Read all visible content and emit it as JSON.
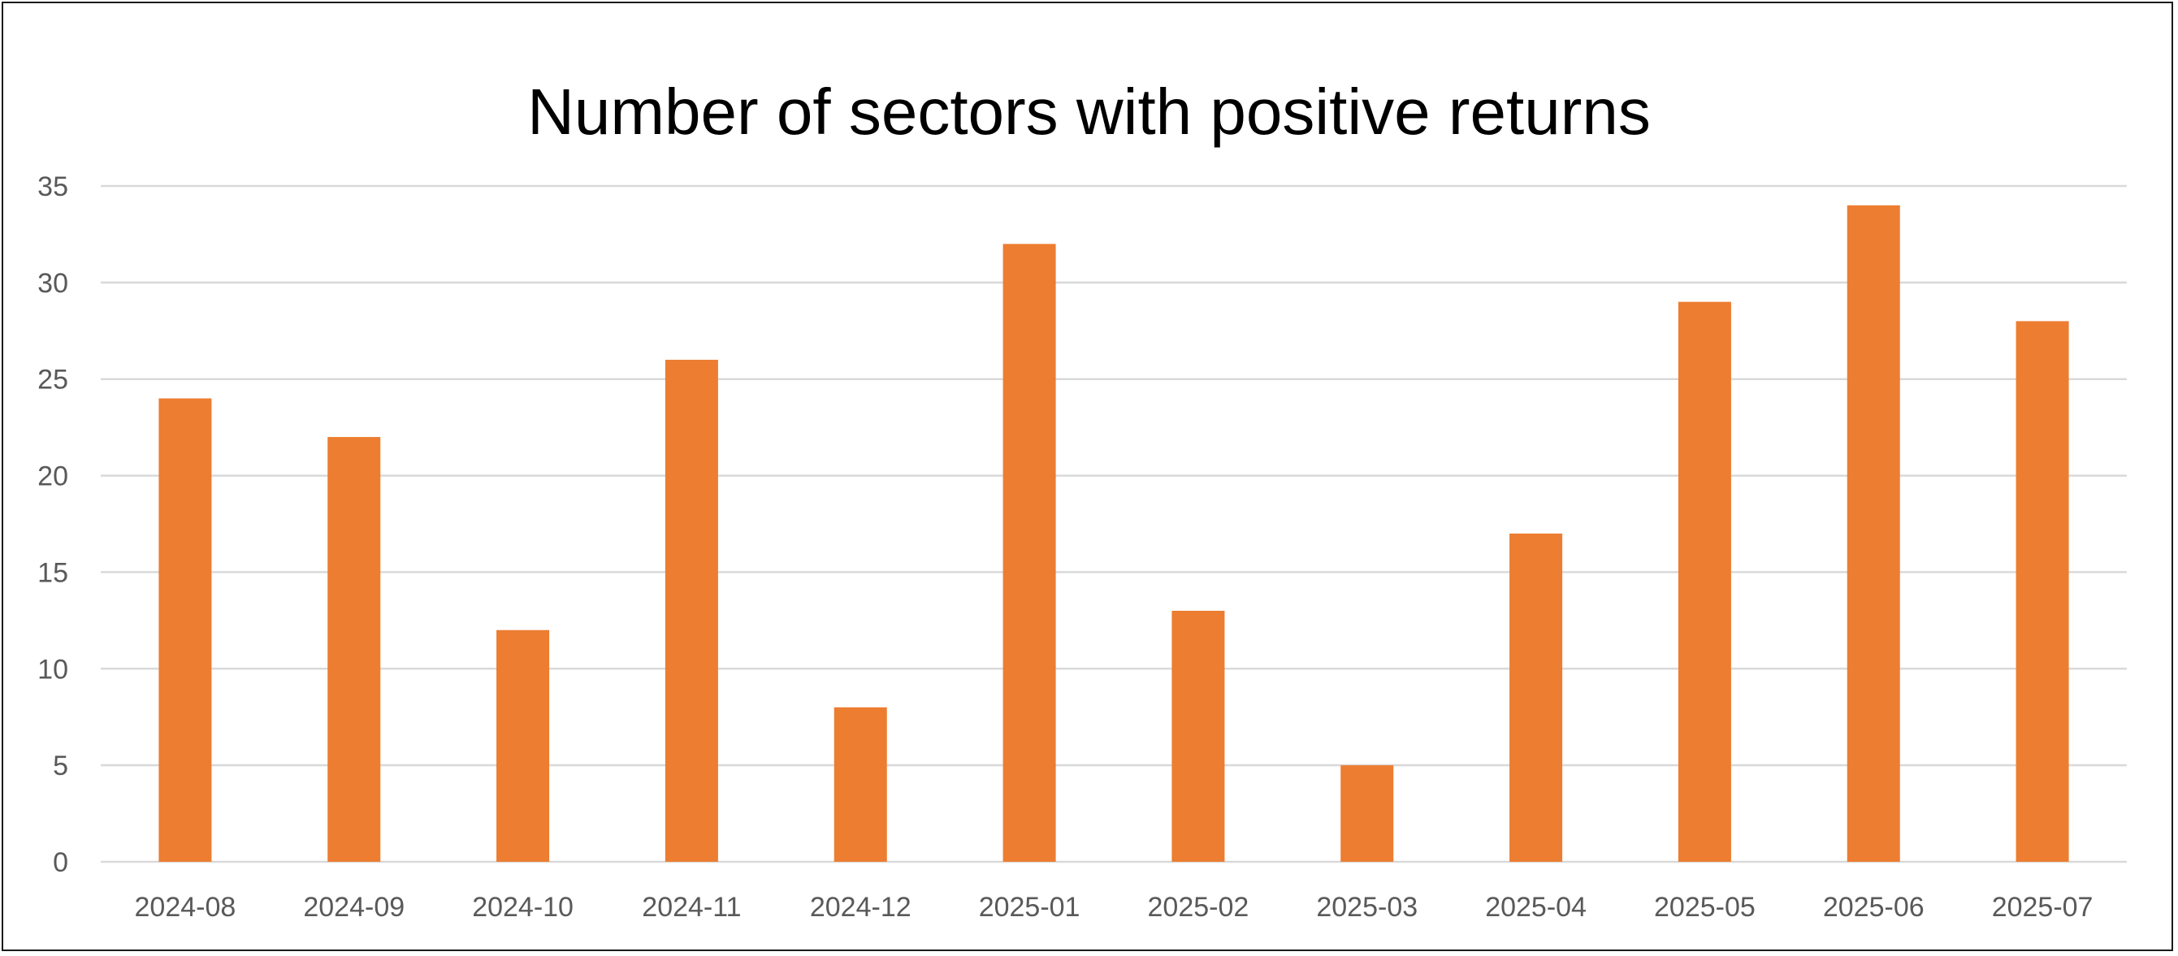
{
  "chart_data": {
    "type": "bar",
    "title": "Number of sectors with positive returns",
    "xlabel": "",
    "ylabel": "",
    "categories": [
      "2024-08",
      "2024-09",
      "2024-10",
      "2024-11",
      "2024-12",
      "2025-01",
      "2025-02",
      "2025-03",
      "2025-04",
      "2025-05",
      "2025-06",
      "2025-07"
    ],
    "values": [
      24,
      22,
      12,
      26,
      8,
      32,
      13,
      5,
      17,
      29,
      34,
      28
    ],
    "ylim": [
      0,
      35
    ],
    "yticks": [
      "0",
      "5",
      "10",
      "15",
      "20",
      "25",
      "30",
      "35"
    ],
    "grid": true,
    "legend": "none",
    "bar_color": "#ED7D31",
    "grid_color": "#D9D9D9",
    "tick_color": "#595959"
  }
}
